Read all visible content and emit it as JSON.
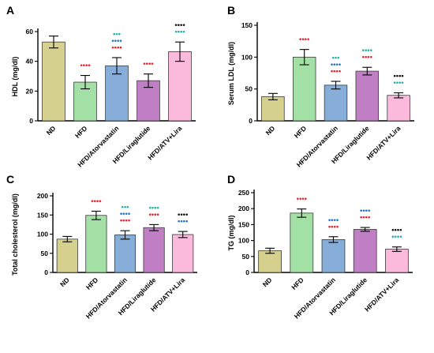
{
  "palette": {
    "ND": "#d6d08e",
    "HFD": "#a3e0a6",
    "HFD/Atorvastatin": "#86aed9",
    "HFD/Liraglutide": "#c07ec4",
    "HFD/ATV+Lira": "#fbb9dc"
  },
  "sig_colors": {
    "red": "#e8222a",
    "teal": "#23b1aa",
    "blue": "#2272c6",
    "black": "#111111"
  },
  "chart_data": [
    {
      "type": "bar",
      "panel": "A",
      "ylabel": "HDL (mg/dl)",
      "ylim": [
        0,
        60
      ],
      "yticks": [
        0,
        20,
        40,
        60
      ],
      "categories": [
        "ND",
        "HFD",
        "HFD/Atorvastatin",
        "HFD/Liraglutide",
        "HFD/ATV+Lira"
      ],
      "values": [
        53,
        26,
        37,
        27,
        46.5
      ],
      "errors": [
        4,
        4.5,
        5.5,
        4.5,
        6.5
      ],
      "significance": [
        [],
        [
          {
            "text": "••••",
            "color": "red"
          }
        ],
        [
          {
            "text": "••••",
            "color": "red"
          },
          {
            "text": "••••",
            "color": "blue"
          },
          {
            "text": "•••",
            "color": "teal"
          }
        ],
        [
          {
            "text": "••••",
            "color": "red"
          }
        ],
        [
          {
            "text": "••••",
            "color": "teal"
          },
          {
            "text": "••••",
            "color": "black"
          }
        ]
      ]
    },
    {
      "type": "bar",
      "panel": "B",
      "ylabel": "Serum LDL (mg/dl)",
      "ylim": [
        0,
        150
      ],
      "yticks": [
        0,
        50,
        100,
        150
      ],
      "categories": [
        "ND",
        "HFD",
        "HFD/Atorvastatin",
        "HFD/Liraglutide",
        "HFD/ATV+Lira"
      ],
      "values": [
        38,
        100,
        56,
        78,
        40
      ],
      "errors": [
        5,
        12,
        6,
        6,
        4
      ],
      "significance": [
        [],
        [
          {
            "text": "••••",
            "color": "red"
          }
        ],
        [
          {
            "text": "••••",
            "color": "red"
          },
          {
            "text": "••••",
            "color": "blue"
          },
          {
            "text": "•••",
            "color": "teal"
          }
        ],
        [
          {
            "text": "••••",
            "color": "red"
          },
          {
            "text": "••••",
            "color": "teal"
          }
        ],
        [
          {
            "text": "••••",
            "color": "teal"
          },
          {
            "text": "••••",
            "color": "black"
          }
        ]
      ]
    },
    {
      "type": "bar",
      "panel": "C",
      "ylabel": "Total cholesterol (mg/dl)",
      "ylim": [
        0,
        200
      ],
      "yticks": [
        0,
        50,
        100,
        150,
        200
      ],
      "categories": [
        "ND",
        "HFD",
        "HFD/Atorvastatin",
        "HFD/Liraglutide",
        "HFD/ATV+Lira"
      ],
      "values": [
        87,
        149,
        98,
        117,
        99
      ],
      "errors": [
        7,
        11,
        11,
        8,
        8
      ],
      "significance": [
        [],
        [
          {
            "text": "••••",
            "color": "red"
          }
        ],
        [
          {
            "text": "••••",
            "color": "red"
          },
          {
            "text": "••••",
            "color": "blue"
          },
          {
            "text": "•••",
            "color": "teal"
          }
        ],
        [
          {
            "text": "••••",
            "color": "red"
          },
          {
            "text": "••••",
            "color": "teal"
          }
        ],
        [
          {
            "text": "••••",
            "color": "blue"
          },
          {
            "text": "••••",
            "color": "black"
          }
        ]
      ]
    },
    {
      "type": "bar",
      "panel": "D",
      "ylabel": "TG (mg/dl)",
      "ylim": [
        0,
        250
      ],
      "yticks": [
        0,
        50,
        100,
        150,
        200,
        250
      ],
      "categories": [
        "ND",
        "HFD",
        "HFD/Atorvastatin",
        "HFD/Liraglutide",
        "HFD/ATV+Lira"
      ],
      "values": [
        68,
        186,
        103,
        135,
        73
      ],
      "errors": [
        8,
        13,
        9,
        6,
        7
      ],
      "significance": [
        [],
        [
          {
            "text": "••••",
            "color": "red"
          }
        ],
        [
          {
            "text": "••••",
            "color": "red"
          },
          {
            "text": "••••",
            "color": "blue"
          }
        ],
        [
          {
            "text": "••••",
            "color": "red"
          },
          {
            "text": "••••",
            "color": "blue"
          }
        ],
        [
          {
            "text": "••••",
            "color": "teal"
          },
          {
            "text": "••••",
            "color": "black"
          }
        ]
      ]
    }
  ]
}
